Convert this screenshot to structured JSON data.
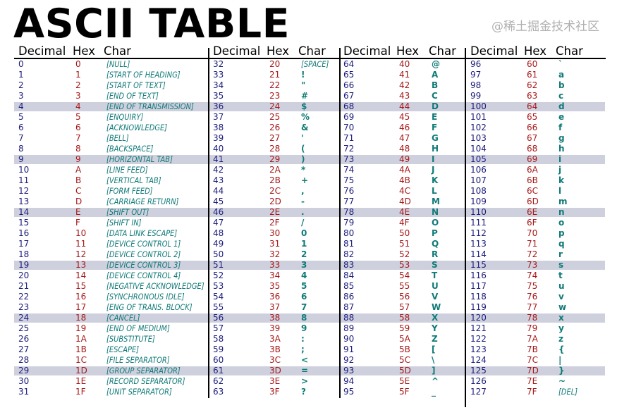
{
  "title": "ASCII TABLE",
  "headers": {
    "decimal": "Decimal",
    "hex": "Hex",
    "char": "Char"
  },
  "colors": {
    "decimal": "#1c1c7c",
    "hex": "#a81818",
    "char": "#0f7a78",
    "highlight": "#cfd0de"
  },
  "highlight_every": 5,
  "watermark": "@稀土掘金技术社区",
  "rows": [
    [
      "0",
      "0",
      "[NULL]"
    ],
    [
      "1",
      "1",
      "[START OF HEADING]"
    ],
    [
      "2",
      "2",
      "[START OF TEXT]"
    ],
    [
      "3",
      "3",
      "[END OF TEXT]"
    ],
    [
      "4",
      "4",
      "[END OF TRANSMISSION]"
    ],
    [
      "5",
      "5",
      "[ENQUIRY]"
    ],
    [
      "6",
      "6",
      "[ACKNOWLEDGE]"
    ],
    [
      "7",
      "7",
      "[BELL]"
    ],
    [
      "8",
      "8",
      "[BACKSPACE]"
    ],
    [
      "9",
      "9",
      "[HORIZONTAL TAB]"
    ],
    [
      "10",
      "A",
      "[LINE FEED]"
    ],
    [
      "11",
      "B",
      "[VERTICAL TAB]"
    ],
    [
      "12",
      "C",
      "[FORM FEED]"
    ],
    [
      "13",
      "D",
      "[CARRIAGE RETURN]"
    ],
    [
      "14",
      "E",
      "[SHIFT OUT]"
    ],
    [
      "15",
      "F",
      "[SHIFT IN]"
    ],
    [
      "16",
      "10",
      "[DATA LINK ESCAPE]"
    ],
    [
      "17",
      "11",
      "[DEVICE CONTROL 1]"
    ],
    [
      "18",
      "12",
      "[DEVICE CONTROL 2]"
    ],
    [
      "19",
      "13",
      "[DEVICE CONTROL 3]"
    ],
    [
      "20",
      "14",
      "[DEVICE CONTROL 4]"
    ],
    [
      "21",
      "15",
      "[NEGATIVE ACKNOWLEDGE]"
    ],
    [
      "22",
      "16",
      "[SYNCHRONOUS IDLE]"
    ],
    [
      "23",
      "17",
      "[ENG OF TRANS. BLOCK]"
    ],
    [
      "24",
      "18",
      "[CANCEL]"
    ],
    [
      "25",
      "19",
      "[END OF MEDIUM]"
    ],
    [
      "26",
      "1A",
      "[SUBSTITUTE]"
    ],
    [
      "27",
      "1B",
      "[ESCAPE]"
    ],
    [
      "28",
      "1C",
      "[FILE SEPARATOR]"
    ],
    [
      "29",
      "1D",
      "[GROUP SEPARATOR]"
    ],
    [
      "30",
      "1E",
      "[RECORD SEPARATOR]"
    ],
    [
      "31",
      "1F",
      "[UNIT SEPARATOR]"
    ],
    [
      "32",
      "20",
      "[SPACE]"
    ],
    [
      "33",
      "21",
      "!"
    ],
    [
      "34",
      "22",
      "\""
    ],
    [
      "35",
      "23",
      "#"
    ],
    [
      "36",
      "24",
      "$"
    ],
    [
      "37",
      "25",
      "%"
    ],
    [
      "38",
      "26",
      "&"
    ],
    [
      "39",
      "27",
      "'"
    ],
    [
      "40",
      "28",
      "("
    ],
    [
      "41",
      "29",
      ")"
    ],
    [
      "42",
      "2A",
      "*"
    ],
    [
      "43",
      "2B",
      "+"
    ],
    [
      "44",
      "2C",
      ","
    ],
    [
      "45",
      "2D",
      "-"
    ],
    [
      "46",
      "2E",
      "."
    ],
    [
      "47",
      "2F",
      "/"
    ],
    [
      "48",
      "30",
      "0"
    ],
    [
      "49",
      "31",
      "1"
    ],
    [
      "50",
      "32",
      "2"
    ],
    [
      "51",
      "33",
      "3"
    ],
    [
      "52",
      "34",
      "4"
    ],
    [
      "53",
      "35",
      "5"
    ],
    [
      "54",
      "36",
      "6"
    ],
    [
      "55",
      "37",
      "7"
    ],
    [
      "56",
      "38",
      "8"
    ],
    [
      "57",
      "39",
      "9"
    ],
    [
      "58",
      "3A",
      ":"
    ],
    [
      "59",
      "3B",
      ";"
    ],
    [
      "60",
      "3C",
      "<"
    ],
    [
      "61",
      "3D",
      "="
    ],
    [
      "62",
      "3E",
      ">"
    ],
    [
      "63",
      "3F",
      "?"
    ],
    [
      "64",
      "40",
      "@"
    ],
    [
      "65",
      "41",
      "A"
    ],
    [
      "66",
      "42",
      "B"
    ],
    [
      "67",
      "43",
      "C"
    ],
    [
      "68",
      "44",
      "D"
    ],
    [
      "69",
      "45",
      "E"
    ],
    [
      "70",
      "46",
      "F"
    ],
    [
      "71",
      "47",
      "G"
    ],
    [
      "72",
      "48",
      "H"
    ],
    [
      "73",
      "49",
      "I"
    ],
    [
      "74",
      "4A",
      "J"
    ],
    [
      "75",
      "4B",
      "K"
    ],
    [
      "76",
      "4C",
      "L"
    ],
    [
      "77",
      "4D",
      "M"
    ],
    [
      "78",
      "4E",
      "N"
    ],
    [
      "79",
      "4F",
      "O"
    ],
    [
      "80",
      "50",
      "P"
    ],
    [
      "81",
      "51",
      "Q"
    ],
    [
      "82",
      "52",
      "R"
    ],
    [
      "83",
      "53",
      "S"
    ],
    [
      "84",
      "54",
      "T"
    ],
    [
      "85",
      "55",
      "U"
    ],
    [
      "86",
      "56",
      "V"
    ],
    [
      "87",
      "57",
      "W"
    ],
    [
      "88",
      "58",
      "X"
    ],
    [
      "89",
      "59",
      "Y"
    ],
    [
      "90",
      "5A",
      "Z"
    ],
    [
      "91",
      "5B",
      "["
    ],
    [
      "92",
      "5C",
      "\\"
    ],
    [
      "93",
      "5D",
      "]"
    ],
    [
      "94",
      "5E",
      "^"
    ],
    [
      "95",
      "5F",
      "_"
    ],
    [
      "96",
      "60",
      "`"
    ],
    [
      "97",
      "61",
      "a"
    ],
    [
      "98",
      "62",
      "b"
    ],
    [
      "99",
      "63",
      "c"
    ],
    [
      "100",
      "64",
      "d"
    ],
    [
      "101",
      "65",
      "e"
    ],
    [
      "102",
      "66",
      "f"
    ],
    [
      "103",
      "67",
      "g"
    ],
    [
      "104",
      "68",
      "h"
    ],
    [
      "105",
      "69",
      "i"
    ],
    [
      "106",
      "6A",
      "j"
    ],
    [
      "107",
      "6B",
      "k"
    ],
    [
      "108",
      "6C",
      "l"
    ],
    [
      "109",
      "6D",
      "m"
    ],
    [
      "110",
      "6E",
      "n"
    ],
    [
      "111",
      "6F",
      "o"
    ],
    [
      "112",
      "70",
      "p"
    ],
    [
      "113",
      "71",
      "q"
    ],
    [
      "114",
      "72",
      "r"
    ],
    [
      "115",
      "73",
      "s"
    ],
    [
      "116",
      "74",
      "t"
    ],
    [
      "117",
      "75",
      "u"
    ],
    [
      "118",
      "76",
      "v"
    ],
    [
      "119",
      "77",
      "w"
    ],
    [
      "120",
      "78",
      "x"
    ],
    [
      "121",
      "79",
      "y"
    ],
    [
      "122",
      "7A",
      "z"
    ],
    [
      "123",
      "7B",
      "{"
    ],
    [
      "124",
      "7C",
      "|"
    ],
    [
      "125",
      "7D",
      "}"
    ],
    [
      "126",
      "7E",
      "~"
    ],
    [
      "127",
      "7F",
      "[DEL]"
    ]
  ]
}
